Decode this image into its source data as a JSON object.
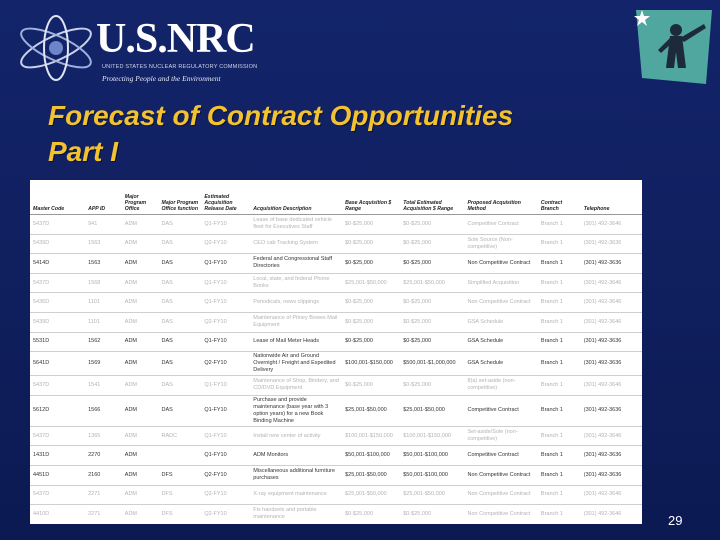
{
  "header": {
    "logo_name": "U.S.NRC",
    "logo_subtitle": "UNITED STATES NUCLEAR REGULATORY COMMISSION",
    "logo_tagline": "Protecting People and the Environment"
  },
  "title_lines": [
    "Forecast of Contract Opportunities",
    "Part I"
  ],
  "table": {
    "columns": [
      "Master Code",
      "APP ID",
      "Major Program Office",
      "Major Program Office function",
      "Estimated Acquisition Release Date",
      "Acquisition Description",
      "Base Acquisition $ Range",
      "Total Estimated Acquisition $ Range",
      "Proposed Acquisition Method",
      "Contract Branch",
      "Telephone"
    ],
    "rows": [
      {
        "faded": true,
        "cells": [
          "5437D",
          "941",
          "ADM",
          "DAS",
          "Q1-FY10",
          "Lease of base dedicated vehicle fleet for Executives Staff",
          "$0-$25,000",
          "$0-$25,000",
          "Competitive Contract",
          "Branch 1",
          "(301) 492-3646"
        ]
      },
      {
        "faded": true,
        "cells": [
          "5439D",
          "1563",
          "ADM",
          "DAS",
          "Q2-FY10",
          "CEO cab Tracking System",
          "$0-$25,000",
          "$0-$25,000",
          "Sole Source (Non-competitive)",
          "Branch 1",
          "(301) 492-3636"
        ]
      },
      {
        "faded": false,
        "cells": [
          "5414D",
          "1563",
          "ADM",
          "DAS",
          "Q1-FY10",
          "Federal and Congressional Staff Directories",
          "$0-$25,000",
          "$0-$25,000",
          "Non Competitive Contract",
          "Branch 1",
          "(301) 492-3636"
        ]
      },
      {
        "faded": true,
        "cells": [
          "5437D",
          "1568",
          "ADM",
          "DAS",
          "Q1-FY10",
          "Local, state, and federal Phone Books",
          "$25,001-$50,000",
          "$25,001-$50,000",
          "Simplified Acquisition",
          "Branch 1",
          "(301) 492-3646"
        ]
      },
      {
        "faded": true,
        "cells": [
          "5436D",
          "1101",
          "ADM",
          "DAS",
          "Q1-FY10",
          "Periodicals, news clippings",
          "$0-$25,000",
          "$0-$25,000",
          "Non Competitive Contract",
          "Branch 1",
          "(301) 492-3646"
        ]
      },
      {
        "faded": true,
        "cells": [
          "5439D",
          "1101",
          "ADM",
          "DAS",
          "Q2-FY10",
          "Maintenance of Pitney Bowes Mail Equipment",
          "$0-$25,000",
          "$0-$25,000",
          "GSA Schedule",
          "Branch 1",
          "(301) 492-3646"
        ]
      },
      {
        "faded": false,
        "cells": [
          "5531D",
          "1562",
          "ADM",
          "DAS",
          "Q1-FY10",
          "Lease of Mail Meter Heads",
          "$0-$25,000",
          "$0-$25,000",
          "GSA Schedule",
          "Branch 1",
          "(301) 492-3636"
        ]
      },
      {
        "faded": false,
        "cells": [
          "5641D",
          "1569",
          "ADM",
          "DAS",
          "Q2-FY10",
          "Nationwide Air and Ground Overnight / Freight and Expedited Delivery",
          "$100,001-$150,000",
          "$500,001-$1,000,000",
          "GSA Schedule",
          "Branch 1",
          "(301) 492-3636"
        ]
      },
      {
        "faded": true,
        "cells": [
          "5437D",
          "1541",
          "ADM",
          "DAS",
          "Q1-FY10",
          "Maintenance of Shop, Bindery, and CD/DVD Equipment",
          "$0-$25,000",
          "$0-$25,000",
          "8(a) set-aside (non-competitive)",
          "Branch 1",
          "(301) 492-3646"
        ]
      },
      {
        "faded": false,
        "cells": [
          "5612D",
          "1566",
          "ADM",
          "DAS",
          "Q1-FY10",
          "Purchase and provide maintenance (base year with 3 option years) for a new Book Binding Machine",
          "$25,001-$50,000",
          "$25,001-$50,000",
          "Competitive Contract",
          "Branch 1",
          "(301) 492-3636"
        ]
      },
      {
        "faded": true,
        "cells": [
          "5437D",
          "1365",
          "ADM",
          "RADC",
          "Q1-FY10",
          "Install new center of activity",
          "$100,001-$150,000",
          "$100,001-$150,000",
          "Set-aside/Sole (non-competitive)",
          "Branch 1",
          "(301) 492-3646"
        ]
      },
      {
        "faded": false,
        "cells": [
          "1431D",
          "2270",
          "ADM",
          "",
          "Q1-FY10",
          "ADM Monitors",
          "$50,001-$100,000",
          "$50,001-$100,000",
          "Competitive Contract",
          "Branch 1",
          "(301) 492-3636"
        ]
      },
      {
        "faded": false,
        "cells": [
          "4451D",
          "2160",
          "ADM",
          "DFS",
          "Q2-FY10",
          "Miscellaneous additional furniture purchases",
          "$25,001-$50,000",
          "$50,001-$100,000",
          "Non Competitive Contract",
          "Branch 1",
          "(301) 492-3636"
        ]
      },
      {
        "faded": true,
        "cells": [
          "5437D",
          "2271",
          "ADM",
          "DFS",
          "Q2-FY10",
          "X-ray equipment maintenance",
          "$25,001-$50,000",
          "$25,001-$50,000",
          "Non Competitive Contract",
          "Branch 1",
          "(301) 492-3646"
        ]
      },
      {
        "faded": true,
        "cells": [
          "4410D",
          "2271",
          "ADM",
          "DFS",
          "Q2-FY10",
          "Fix handsets and portable maintenance",
          "$0-$25,000",
          "$0-$25,000",
          "Non Competitive Contract",
          "Branch 1",
          "(301) 492-3646"
        ]
      },
      {
        "faded": false,
        "cells": [
          "2952D",
          "2320",
          "ADM",
          "DFS",
          "Q1-FY10",
          "ESS Sound Slab Wall",
          "$25,001-$50,000",
          "$25,001-$50,000",
          "8a Set-aside (Non competitive)",
          "Branch 1",
          "(301) 492-3636"
        ]
      }
    ]
  },
  "page_number": "29"
}
